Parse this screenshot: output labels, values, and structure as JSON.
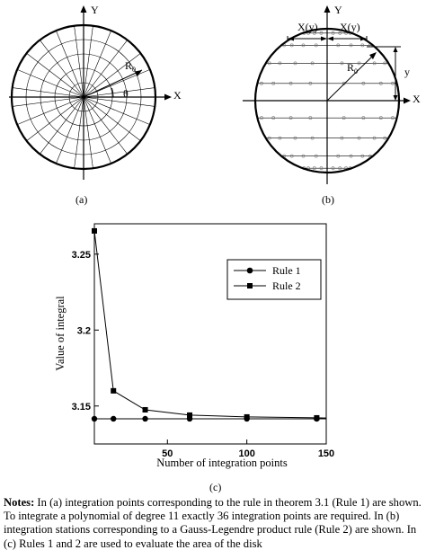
{
  "figure": {
    "panel_a": {
      "caption": "(a)",
      "axis_x": "X",
      "axis_y": "Y",
      "radius_label": "R",
      "radius_sub": "0",
      "angle_label": "θ"
    },
    "panel_b": {
      "caption": "(b)",
      "axis_x": "X",
      "axis_y": "Y",
      "radius_label": "R",
      "radius_sub": "0",
      "y_label": "y",
      "xy_left": "X(y)",
      "xy_right": "X(y)"
    },
    "panel_c": {
      "caption": "(c)"
    }
  },
  "chart_data": {
    "type": "line",
    "xlabel": "Number of integration points",
    "ylabel": "Value of integral",
    "xlim": [
      4,
      150
    ],
    "ylim": [
      3.125,
      3.27
    ],
    "xticks": [
      50,
      100,
      150
    ],
    "yticks": [
      3.15,
      3.2,
      3.25
    ],
    "ytick_labels": [
      "3.15",
      "3.2",
      "3.25"
    ],
    "xtick_labels": [
      "50",
      "100",
      "150"
    ],
    "grid": false,
    "legend_position": "top-right",
    "series": [
      {
        "name": "Rule 1",
        "marker": "circle",
        "x": [
          4,
          16,
          36,
          64,
          100,
          144,
          150
        ],
        "y": [
          3.1416,
          3.1416,
          3.1416,
          3.1416,
          3.1416,
          3.1416,
          3.1416
        ]
      },
      {
        "name": "Rule 2",
        "marker": "square",
        "x": [
          4,
          16,
          36,
          64,
          100,
          144,
          150
        ],
        "y": [
          3.2653,
          3.16,
          3.1475,
          3.144,
          3.1428,
          3.1422,
          3.1421
        ]
      }
    ]
  },
  "notes": {
    "heading": "Notes:",
    "text": " In (a) integration points corresponding to the rule in theorem 3.1 (Rule 1) are shown. To integrate a polynomial of degree 11 exactly 36 integration points are required. In (b) integration stations corresponding to a Gauss-Legendre product rule (Rule 2) are shown. In (c) Rules 1 and 2 are used to evaluate the area of the disk"
  }
}
